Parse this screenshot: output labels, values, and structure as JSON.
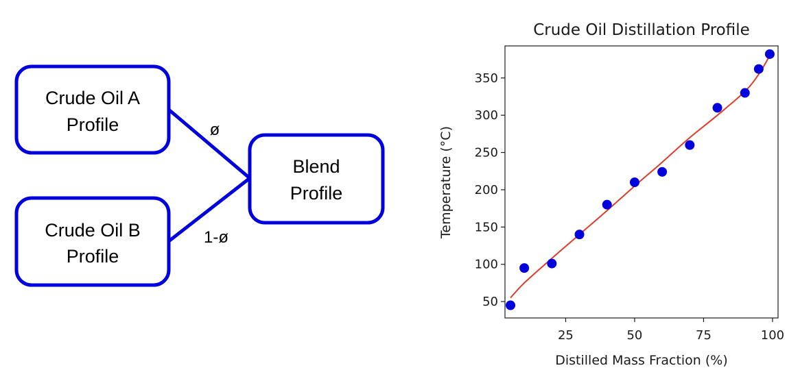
{
  "diagram": {
    "box_color": "#0000dd",
    "nodes": {
      "crude_a": {
        "lines": [
          "Crude Oil A",
          "Profile"
        ]
      },
      "crude_b": {
        "lines": [
          "Crude Oil B",
          "Profile"
        ]
      },
      "blend": {
        "lines": [
          "Blend",
          "Profile"
        ]
      }
    },
    "edges": {
      "a_to_blend": {
        "label": "ø"
      },
      "b_to_blend": {
        "label": "1-ø"
      }
    }
  },
  "chart_data": {
    "type": "scatter",
    "title": "Crude Oil Distillation Profile",
    "xlabel": "Distilled Mass Fraction (%)",
    "ylabel": "Temperature (°C)",
    "xlim": [
      3,
      102
    ],
    "ylim": [
      28,
      393
    ],
    "xticks": [
      25,
      50,
      75,
      100
    ],
    "yticks": [
      50,
      100,
      150,
      200,
      250,
      300,
      350
    ],
    "grid": false,
    "point_color": "#0000dd",
    "fit_color": "#e03a2a",
    "points": {
      "x": [
        5,
        10,
        20,
        30,
        40,
        50,
        60,
        70,
        80,
        90,
        95,
        99
      ],
      "y": [
        45,
        95,
        101,
        140,
        180,
        210,
        224,
        260,
        310,
        330,
        362,
        382
      ]
    },
    "fit": {
      "x": [
        5,
        10,
        20,
        30,
        40,
        50,
        60,
        70,
        80,
        90,
        95,
        99
      ],
      "y": [
        55,
        75,
        108,
        140,
        172,
        205,
        237,
        270,
        300,
        332,
        355,
        380
      ]
    }
  }
}
